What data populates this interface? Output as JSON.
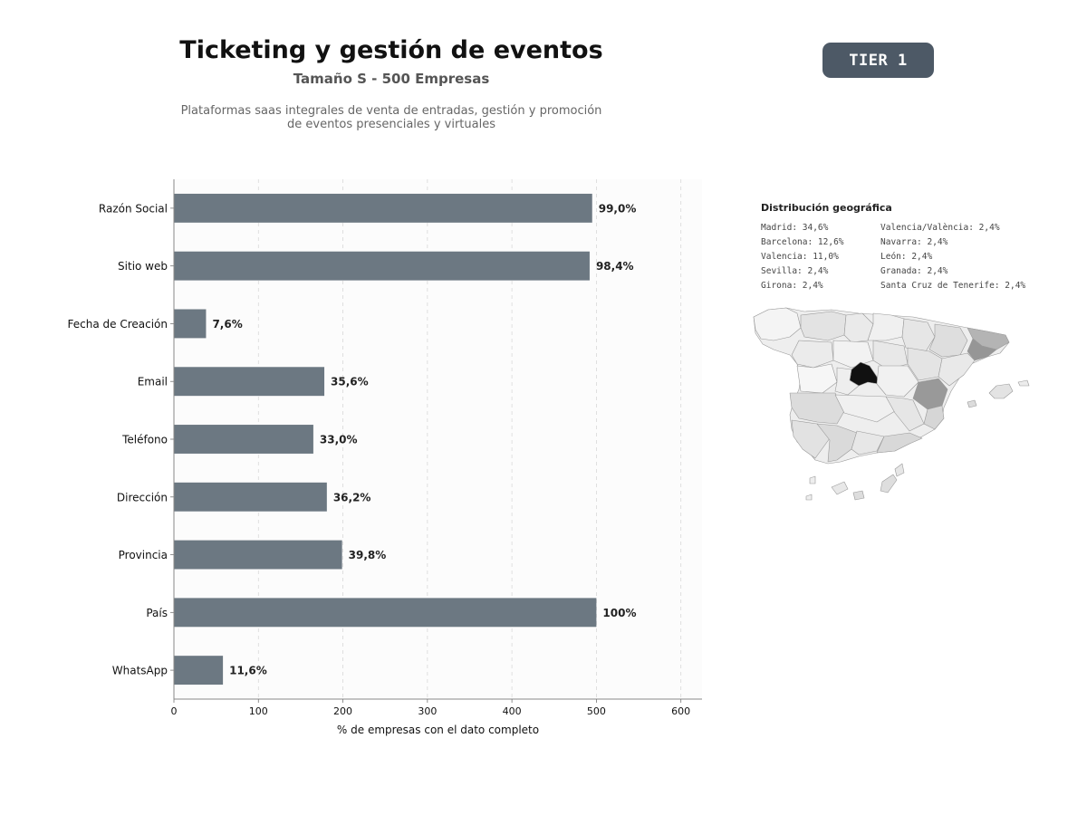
{
  "header": {
    "title": "Ticketing y gestión de eventos",
    "subtitle": "Tamaño S - 500 Empresas",
    "description_line1": "Plataformas saas integrales de venta de entradas, gestión y promoción",
    "description_line2": "de eventos presenciales y virtuales",
    "tier": "TIER 1"
  },
  "chart_data": {
    "type": "bar",
    "orientation": "horizontal",
    "categories": [
      "Razón Social",
      "Sitio web",
      "Fecha de Creación",
      "Email",
      "Teléfono",
      "Dirección",
      "Provincia",
      "País",
      "WhatsApp"
    ],
    "values": [
      495,
      492,
      38,
      178,
      165,
      181,
      199,
      500,
      58
    ],
    "value_labels": [
      "99,0%",
      "98,4%",
      "7,6%",
      "35,6%",
      "33,0%",
      "36,2%",
      "39,8%",
      "100%",
      "11,6%"
    ],
    "xlabel": "% de empresas con el dato completo",
    "ylabel": "",
    "xlim": [
      0,
      625
    ],
    "xticks": [
      0,
      100,
      200,
      300,
      400,
      500,
      600
    ],
    "grid": "vertical dashed",
    "bar_color": "#6c7882"
  },
  "geo": {
    "title": "Distribución geográfica",
    "left_column": [
      "Madrid: 34,6%",
      "Barcelona: 12,6%",
      "Valencia: 11,0%",
      "Sevilla: 2,4%",
      "Girona: 2,4%"
    ],
    "right_column": [
      "Valencia/València: 2,4%",
      "Navarra: 2,4%",
      "León: 2,4%",
      "Granada: 2,4%",
      "Santa Cruz de Tenerife: 2,4%"
    ]
  }
}
